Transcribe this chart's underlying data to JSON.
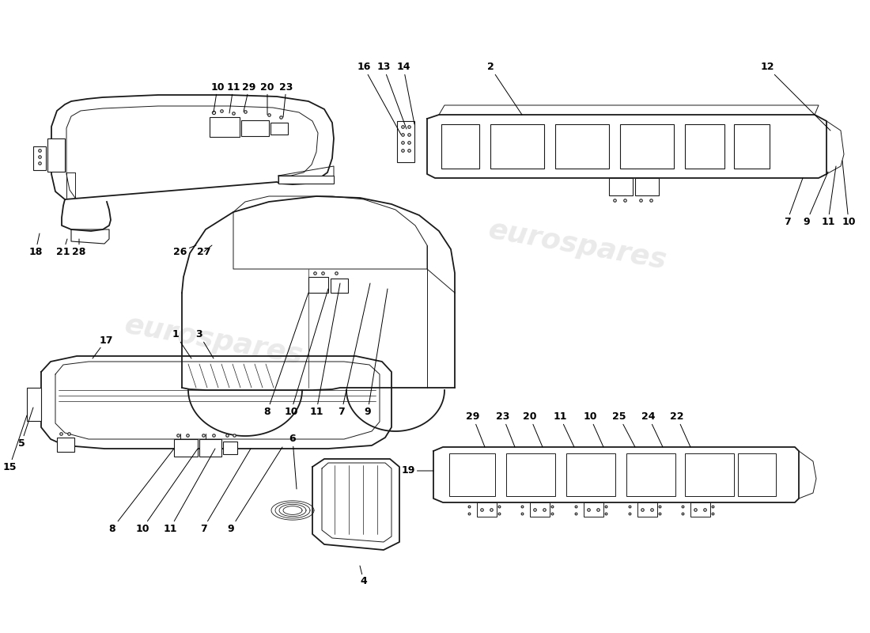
{
  "bg_color": "#ffffff",
  "line_color": "#1a1a1a",
  "watermark_text": "eurospares",
  "watermark_color": "#d0d0d0",
  "fig_width": 11.0,
  "fig_height": 8.0,
  "dpi": 100
}
